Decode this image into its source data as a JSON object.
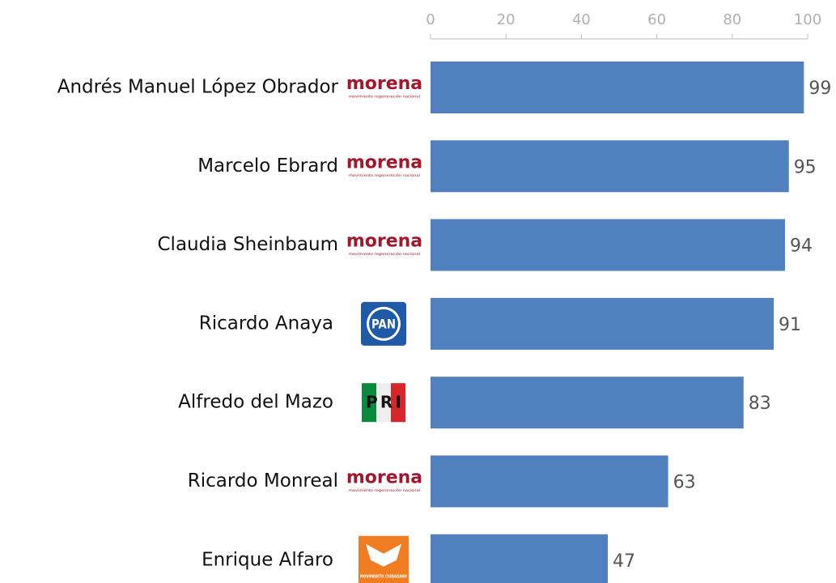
{
  "chart_data": {
    "type": "hbar",
    "categories": [
      "Andrés Manuel López Obrador",
      "Marcelo Ebrard",
      "Claudia Sheinbaum",
      "Ricardo Anaya",
      "Alfredo del Mazo",
      "Ricardo Monreal",
      "Enrique Alfaro"
    ],
    "logos": [
      "morena",
      "morena",
      "morena",
      "PAN",
      "PRI",
      "morena",
      "MOVIMIENTO CIUDADANO"
    ],
    "logo_tagline": "movimiento regeneración nacional",
    "values": [
      99,
      95,
      94,
      91,
      83,
      63,
      47
    ],
    "color": "#5081be",
    "xlim": [
      0,
      100
    ],
    "xticks": [
      0,
      20,
      40,
      60,
      80,
      100
    ]
  }
}
